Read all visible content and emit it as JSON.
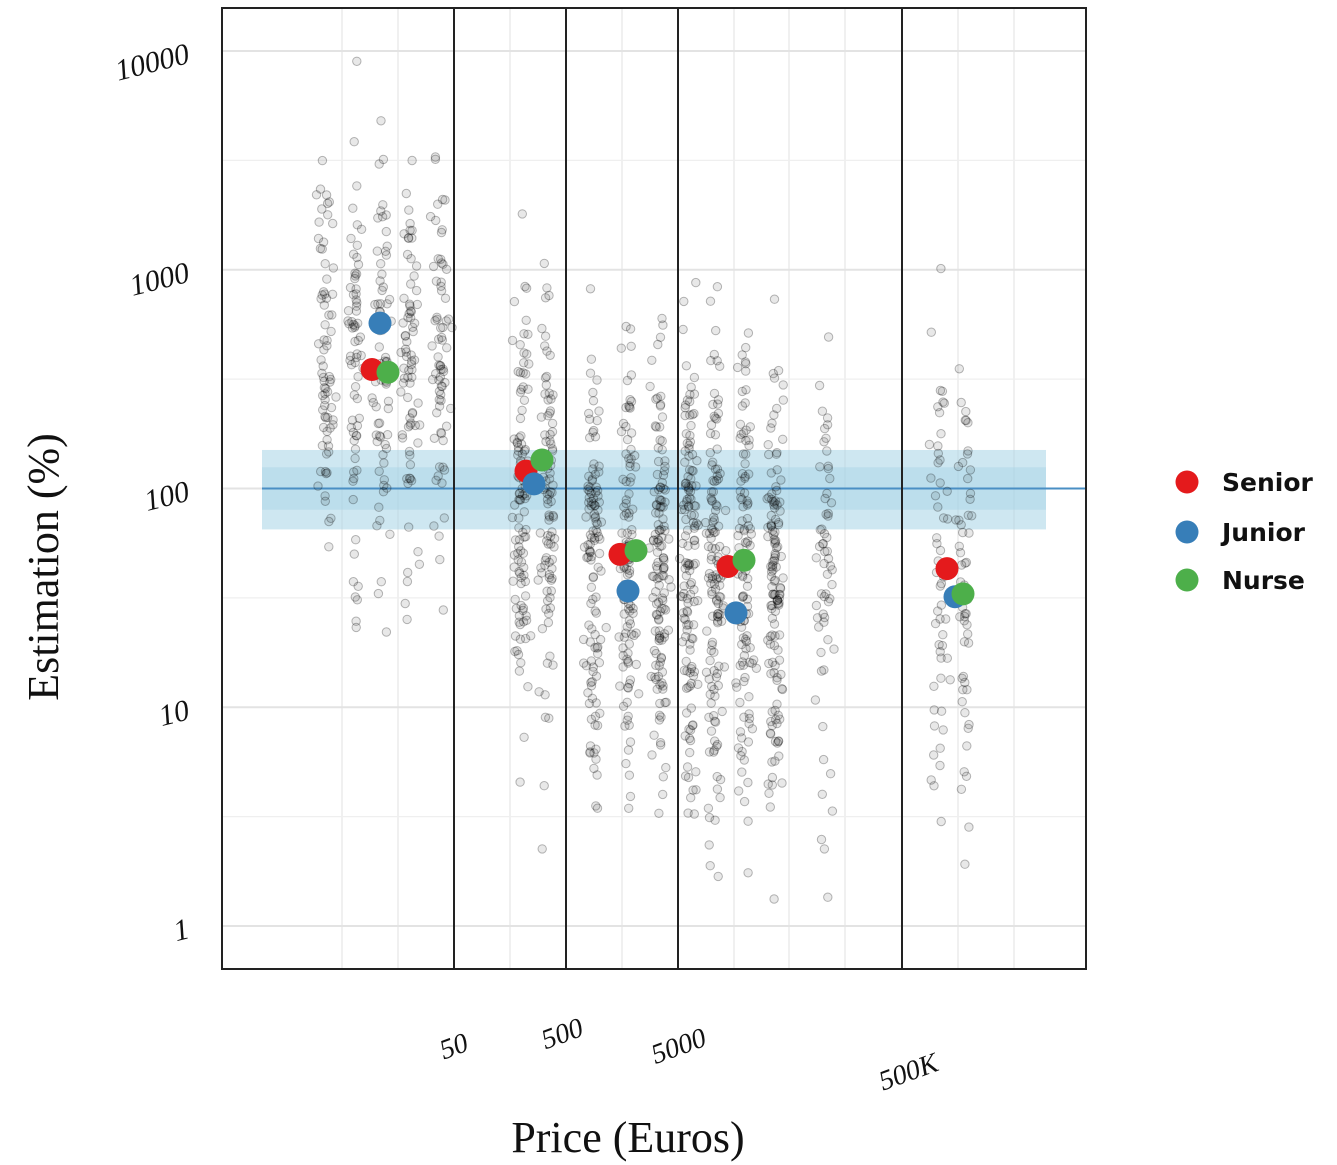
{
  "chart_data": {
    "type": "scatter",
    "title": "",
    "xlabel": "Price (Euros)",
    "ylabel": "Estimation (%)",
    "y_scale": "log",
    "ylim": [
      1,
      10000
    ],
    "y_ticks": [
      "10000",
      "1000",
      "100",
      "10",
      "1"
    ],
    "x_tick_labels": [
      "50",
      "500",
      "5000",
      "500K"
    ],
    "reference_line": {
      "y": 100,
      "band": [
        65,
        150
      ],
      "color": "#4a8fc4"
    },
    "grid": true,
    "legend_position": "right",
    "colors": {
      "Senior": "#e41a1c",
      "Junior": "#377eb8",
      "Nurse": "#4daf4a",
      "raw": "#000000"
    },
    "groups": [
      "1",
      "2",
      "3",
      "4",
      "5",
      "6",
      "7"
    ],
    "series": [
      {
        "name": "Senior",
        "values": [
          350,
          120,
          50,
          44,
          43
        ]
      },
      {
        "name": "Junior",
        "values": [
          570,
          105,
          34,
          27,
          32
        ]
      },
      {
        "name": "Nurse",
        "values": [
          340,
          135,
          52,
          47,
          33
        ]
      }
    ],
    "series_groups": [
      "1",
      "2",
      "3",
      "4",
      "6"
    ],
    "raw_points_description_free": true
  }
}
